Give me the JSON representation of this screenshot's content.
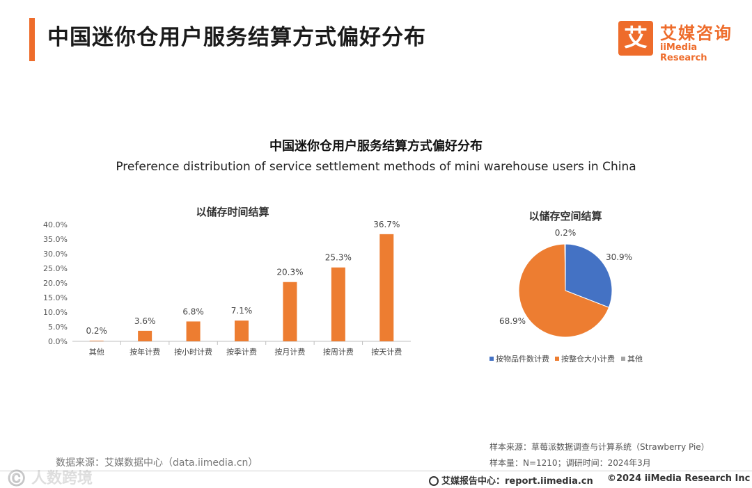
{
  "header": {
    "title": "中国迷你仓用户服务结算方式偏好分布",
    "logo_mark": "艾",
    "logo_cn": "艾媒咨询",
    "logo_en": "iiMedia Research"
  },
  "chart_title_cn": "中国迷你仓用户服务结算方式偏好分布",
  "chart_title_en": "Preference distribution of service settlement methods of mini warehouse users in China",
  "colors": {
    "accent": "#ee6c2b",
    "bar": "#ed7d31",
    "blue": "#4472c4",
    "gray": "#a5a5a5"
  },
  "chart_data": [
    {
      "type": "bar",
      "title": "以储存时间结算",
      "categories": [
        "其他",
        "按年计费",
        "按小时计费",
        "按季计费",
        "按月计费",
        "按周计费",
        "按天计费"
      ],
      "values": [
        0.2,
        3.6,
        6.8,
        7.1,
        20.3,
        25.3,
        36.7
      ],
      "labels": [
        "0.2%",
        "3.6%",
        "6.8%",
        "7.1%",
        "20.3%",
        "25.3%",
        "36.7%"
      ],
      "ylim": [
        0,
        40
      ],
      "yticks": [
        "0.0%",
        "5.0%",
        "10.0%",
        "15.0%",
        "20.0%",
        "25.0%",
        "30.0%",
        "35.0%",
        "40.0%"
      ],
      "xlabel": "",
      "ylabel": ""
    },
    {
      "type": "pie",
      "title": "以储存空间结算",
      "categories": [
        "按物品件数计费",
        "按整仓大小计费",
        "其他"
      ],
      "values": [
        30.9,
        68.9,
        0.2
      ],
      "labels": [
        "30.9%",
        "68.9%",
        "0.2%"
      ],
      "legend": "bottom"
    }
  ],
  "footer": {
    "data_source": "数据来源：艾媒数据中心（data.iimedia.cn）",
    "sample_source": "样本来源：草莓派数据调查与计算系统（Strawberry Pie）",
    "sample_size": "样本量：N=1210；调研时间：2024年3月",
    "report_center": "艾媒报告中心：report.iimedia.cn",
    "copyright": "©2024  iiMedia Research  Inc",
    "watermark": "©️ 人数跨境"
  }
}
